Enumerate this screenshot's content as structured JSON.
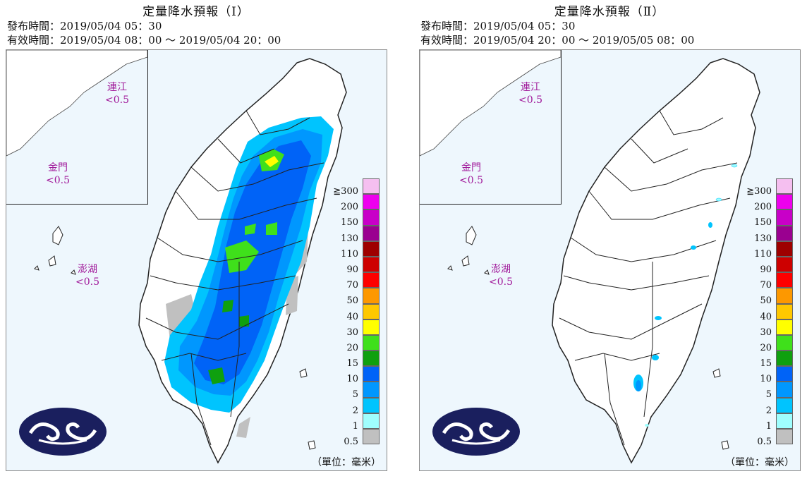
{
  "panels": [
    {
      "title": "定量降水預報（Ⅰ）",
      "issue_line": "發布時間：2019/05/04 05：30",
      "valid_line": "有效時間：2019/05/04 08：00 ～ 2019/05/04 20：00",
      "islands": [
        {
          "name": "連江",
          "value": "<0.5"
        },
        {
          "name": "金門",
          "value": "<0.5"
        },
        {
          "name": "澎湖",
          "value": "<0.5"
        }
      ]
    },
    {
      "title": "定量降水預報（Ⅱ）",
      "issue_line": "發布時間：2019/05/04 05：30",
      "valid_line": "有效時間：2019/05/04 20：00 ～ 2019/05/05 08：00",
      "islands": [
        {
          "name": "連江",
          "value": "<0.5"
        },
        {
          "name": "金門",
          "value": "<0.5"
        },
        {
          "name": "澎湖",
          "value": "<0.5"
        }
      ]
    }
  ],
  "legend": {
    "levels": [
      "≧300",
      "200",
      "150",
      "130",
      "110",
      "90",
      "70",
      "50",
      "40",
      "30",
      "20",
      "15",
      "10",
      "5",
      "2",
      "1",
      "0.5"
    ],
    "colors": [
      "#f5bff0",
      "#ee00ee",
      "#c800c8",
      "#9a0090",
      "#9e0000",
      "#cd0000",
      "#fd0000",
      "#fd9800",
      "#ffc800",
      "#ffff00",
      "#3fe01b",
      "#0fa00f",
      "#0063f7",
      "#0097fe",
      "#00c4fe",
      "#9ffefe",
      "#c0c0c0"
    ],
    "unit": "（單位：毫米）"
  },
  "colors": {
    "frame_bg": "#eef7fd",
    "island_label": "#a0199a",
    "logo_bg": "#1a1f5e"
  }
}
